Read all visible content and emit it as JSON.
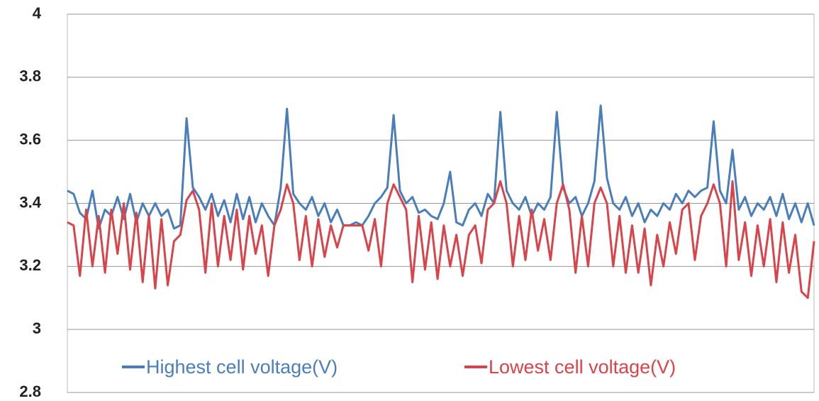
{
  "chart_data": {
    "type": "line",
    "ylim": [
      2.8,
      4
    ],
    "yticks": [
      2.8,
      3,
      3.2,
      3.4,
      3.6,
      3.8,
      4
    ],
    "grid": true,
    "legend": "bottom",
    "series": [
      {
        "name": "Highest cell voltage(V)",
        "color": "#4a7ebb",
        "values": [
          3.44,
          3.43,
          3.37,
          3.35,
          3.44,
          3.32,
          3.38,
          3.36,
          3.42,
          3.35,
          3.43,
          3.34,
          3.4,
          3.36,
          3.4,
          3.36,
          3.38,
          3.32,
          3.33,
          3.67,
          3.45,
          3.42,
          3.38,
          3.43,
          3.36,
          3.41,
          3.34,
          3.43,
          3.35,
          3.42,
          3.34,
          3.4,
          3.36,
          3.33,
          3.45,
          3.7,
          3.43,
          3.4,
          3.38,
          3.42,
          3.36,
          3.4,
          3.34,
          3.38,
          3.33,
          3.33,
          3.34,
          3.33,
          3.36,
          3.4,
          3.42,
          3.45,
          3.68,
          3.44,
          3.4,
          3.42,
          3.37,
          3.38,
          3.36,
          3.35,
          3.4,
          3.5,
          3.34,
          3.33,
          3.38,
          3.4,
          3.36,
          3.43,
          3.4,
          3.69,
          3.44,
          3.4,
          3.38,
          3.42,
          3.36,
          3.4,
          3.38,
          3.42,
          3.69,
          3.45,
          3.4,
          3.42,
          3.36,
          3.4,
          3.47,
          3.71,
          3.48,
          3.4,
          3.38,
          3.42,
          3.36,
          3.4,
          3.34,
          3.38,
          3.36,
          3.4,
          3.38,
          3.43,
          3.4,
          3.44,
          3.42,
          3.44,
          3.45,
          3.66,
          3.44,
          3.4,
          3.57,
          3.38,
          3.42,
          3.36,
          3.4,
          3.38,
          3.42,
          3.36,
          3.43,
          3.35,
          3.4,
          3.34,
          3.4,
          3.33
        ]
      },
      {
        "name": "Lowest cell voltage(V)",
        "color": "#d9434a",
        "values": [
          3.34,
          3.33,
          3.17,
          3.38,
          3.2,
          3.36,
          3.18,
          3.38,
          3.24,
          3.4,
          3.19,
          3.37,
          3.15,
          3.36,
          3.13,
          3.35,
          3.14,
          3.28,
          3.3,
          3.41,
          3.44,
          3.38,
          3.18,
          3.4,
          3.2,
          3.36,
          3.22,
          3.38,
          3.19,
          3.36,
          3.24,
          3.33,
          3.17,
          3.33,
          3.38,
          3.46,
          3.4,
          3.22,
          3.36,
          3.2,
          3.35,
          3.23,
          3.33,
          3.26,
          3.33,
          3.33,
          3.33,
          3.33,
          3.25,
          3.35,
          3.2,
          3.4,
          3.46,
          3.42,
          3.38,
          3.15,
          3.36,
          3.19,
          3.34,
          3.16,
          3.33,
          3.2,
          3.3,
          3.17,
          3.3,
          3.33,
          3.21,
          3.38,
          3.4,
          3.47,
          3.4,
          3.2,
          3.36,
          3.22,
          3.38,
          3.25,
          3.35,
          3.22,
          3.4,
          3.46,
          3.38,
          3.18,
          3.36,
          3.2,
          3.4,
          3.45,
          3.4,
          3.2,
          3.36,
          3.18,
          3.33,
          3.18,
          3.32,
          3.14,
          3.3,
          3.2,
          3.34,
          3.24,
          3.38,
          3.4,
          3.22,
          3.36,
          3.4,
          3.46,
          3.4,
          3.2,
          3.47,
          3.22,
          3.34,
          3.17,
          3.33,
          3.2,
          3.35,
          3.15,
          3.34,
          3.18,
          3.3,
          3.12,
          3.1,
          3.28
        ]
      }
    ]
  }
}
